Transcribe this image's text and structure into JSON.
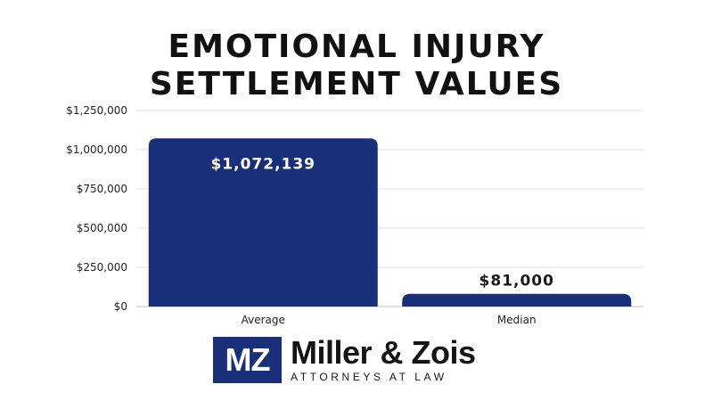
{
  "chart_data": {
    "type": "bar",
    "title_lines": [
      "EMOTIONAL INJURY",
      "SETTLEMENT VALUES"
    ],
    "categories": [
      "Average",
      "Median"
    ],
    "values": [
      1072139,
      81000
    ],
    "data_labels": [
      "$1,072,139",
      "$81,000"
    ],
    "yticks": [
      0,
      250000,
      500000,
      750000,
      1000000,
      1250000
    ],
    "ytick_labels": [
      "$0",
      "$250,000",
      "$500,000",
      "$750,000",
      "$1,000,000",
      "$1,250,000"
    ],
    "ylim": [
      0,
      1250000
    ],
    "grid": true,
    "bar_color": "#1a2f7a",
    "label_inside_color": "#ffffff",
    "label_outside_color": "#1a1a1a"
  },
  "brand": {
    "mark": "MZ",
    "name": "Miller & Zois",
    "tagline": "ATTORNEYS AT LAW",
    "color": "#1a2f7a"
  }
}
